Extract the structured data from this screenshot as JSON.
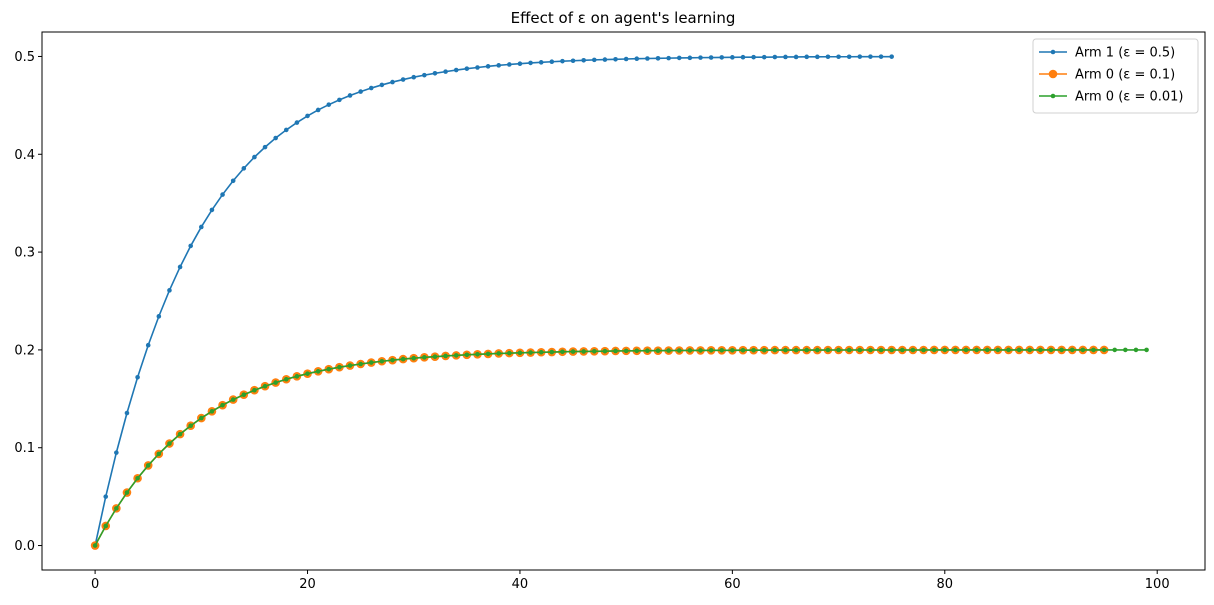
{
  "chart_data": {
    "type": "line",
    "title": "Effect of ε on agent's learning",
    "xlabel": "",
    "ylabel": "",
    "xlim": [
      -5,
      104.5
    ],
    "ylim": [
      -0.025,
      0.525
    ],
    "xticks": [
      0,
      20,
      40,
      60,
      80,
      100
    ],
    "xtick_labels": [
      "0",
      "20",
      "40",
      "60",
      "80",
      "100"
    ],
    "yticks": [
      0.0,
      0.1,
      0.2,
      0.3,
      0.4,
      0.5
    ],
    "ytick_labels": [
      "0.0",
      "0.1",
      "0.2",
      "0.3",
      "0.4",
      "0.5"
    ],
    "grid": false,
    "legend_position": "top-right",
    "series": [
      {
        "name": "Arm 1 (ε = 0.5)",
        "color": "#1f77b4",
        "marker": "small-dot",
        "x_start": 0,
        "x_end": 75,
        "formula_note": "y = 0.5*(1-0.9^x)",
        "values": [
          0.0,
          0.05,
          0.095,
          0.1355,
          0.172,
          0.2048,
          0.2343,
          0.2609,
          0.2848,
          0.3063,
          0.3257,
          0.3431,
          0.3588,
          0.3729,
          0.3856,
          0.3971,
          0.4073,
          0.4166,
          0.4249,
          0.4324,
          0.4392,
          0.4453,
          0.4507,
          0.4556,
          0.4601,
          0.4641,
          0.4677,
          0.4709,
          0.4738,
          0.4764,
          0.4788,
          0.4809,
          0.4828,
          0.4845,
          0.4861,
          0.4875,
          0.4887,
          0.4899,
          0.4909,
          0.4918,
          0.4926,
          0.4934,
          0.494,
          0.4946,
          0.4952,
          0.4956,
          0.4961,
          0.4965,
          0.4968,
          0.4971,
          0.4974,
          0.4977,
          0.4979,
          0.4981,
          0.4983,
          0.4985,
          0.4986,
          0.4988,
          0.4989,
          0.499,
          0.4991,
          0.4992,
          0.4993,
          0.4993,
          0.4994,
          0.4995,
          0.4995,
          0.4996,
          0.4996,
          0.4997,
          0.4997,
          0.4997,
          0.4998,
          0.4998,
          0.4998,
          0.4998
        ]
      },
      {
        "name": "Arm 0 (ε = 0.1)",
        "color": "#ff7f0e",
        "marker": "large-dot",
        "x_start": 0,
        "x_end": 95,
        "values": [
          0.0,
          0.02,
          0.0376,
          0.0531,
          0.0667,
          0.0787,
          0.0893,
          0.0986,
          0.1068,
          0.114,
          0.1203,
          0.1258,
          0.1307,
          0.135,
          0.1388,
          0.1421,
          0.1451,
          0.1476,
          0.1499,
          0.1519,
          0.1537,
          0.1552,
          0.1566,
          0.1578,
          0.1588,
          0.1598,
          0.1606,
          0.1613,
          0.1619,
          0.1625,
          0.163,
          0.1634,
          0.1638,
          0.1641,
          0.1644,
          0.1647,
          0.1649,
          0.1651,
          0.1653,
          0.1655,
          0.1656,
          0.1657,
          0.1659,
          0.166,
          0.166,
          0.1661,
          0.1662,
          0.1662,
          0.1663,
          0.1663,
          0.1664,
          0.1664,
          0.1664,
          0.1665,
          0.1665,
          0.1665,
          0.1665,
          0.1665,
          0.1666,
          0.1666,
          0.1666,
          0.1666,
          0.1666,
          0.1666,
          0.1666,
          0.1666,
          0.1666,
          0.1666,
          0.1666,
          0.1666,
          0.1666,
          0.1666,
          0.1666,
          0.1666,
          0.1666,
          0.1666,
          0.1666,
          0.1666,
          0.1666,
          0.1666,
          0.1666,
          0.1666,
          0.1666,
          0.1666,
          0.1666,
          0.1666,
          0.1666,
          0.1666,
          0.1666,
          0.1666,
          0.1666,
          0.1666,
          0.1666,
          0.1666,
          0.1666,
          0.1666
        ]
      },
      {
        "name": "Arm 0 (ε = 0.01)",
        "color": "#2ca02c",
        "marker": "small-dot",
        "x_start": 0,
        "x_end": 99,
        "values": []
      }
    ]
  }
}
